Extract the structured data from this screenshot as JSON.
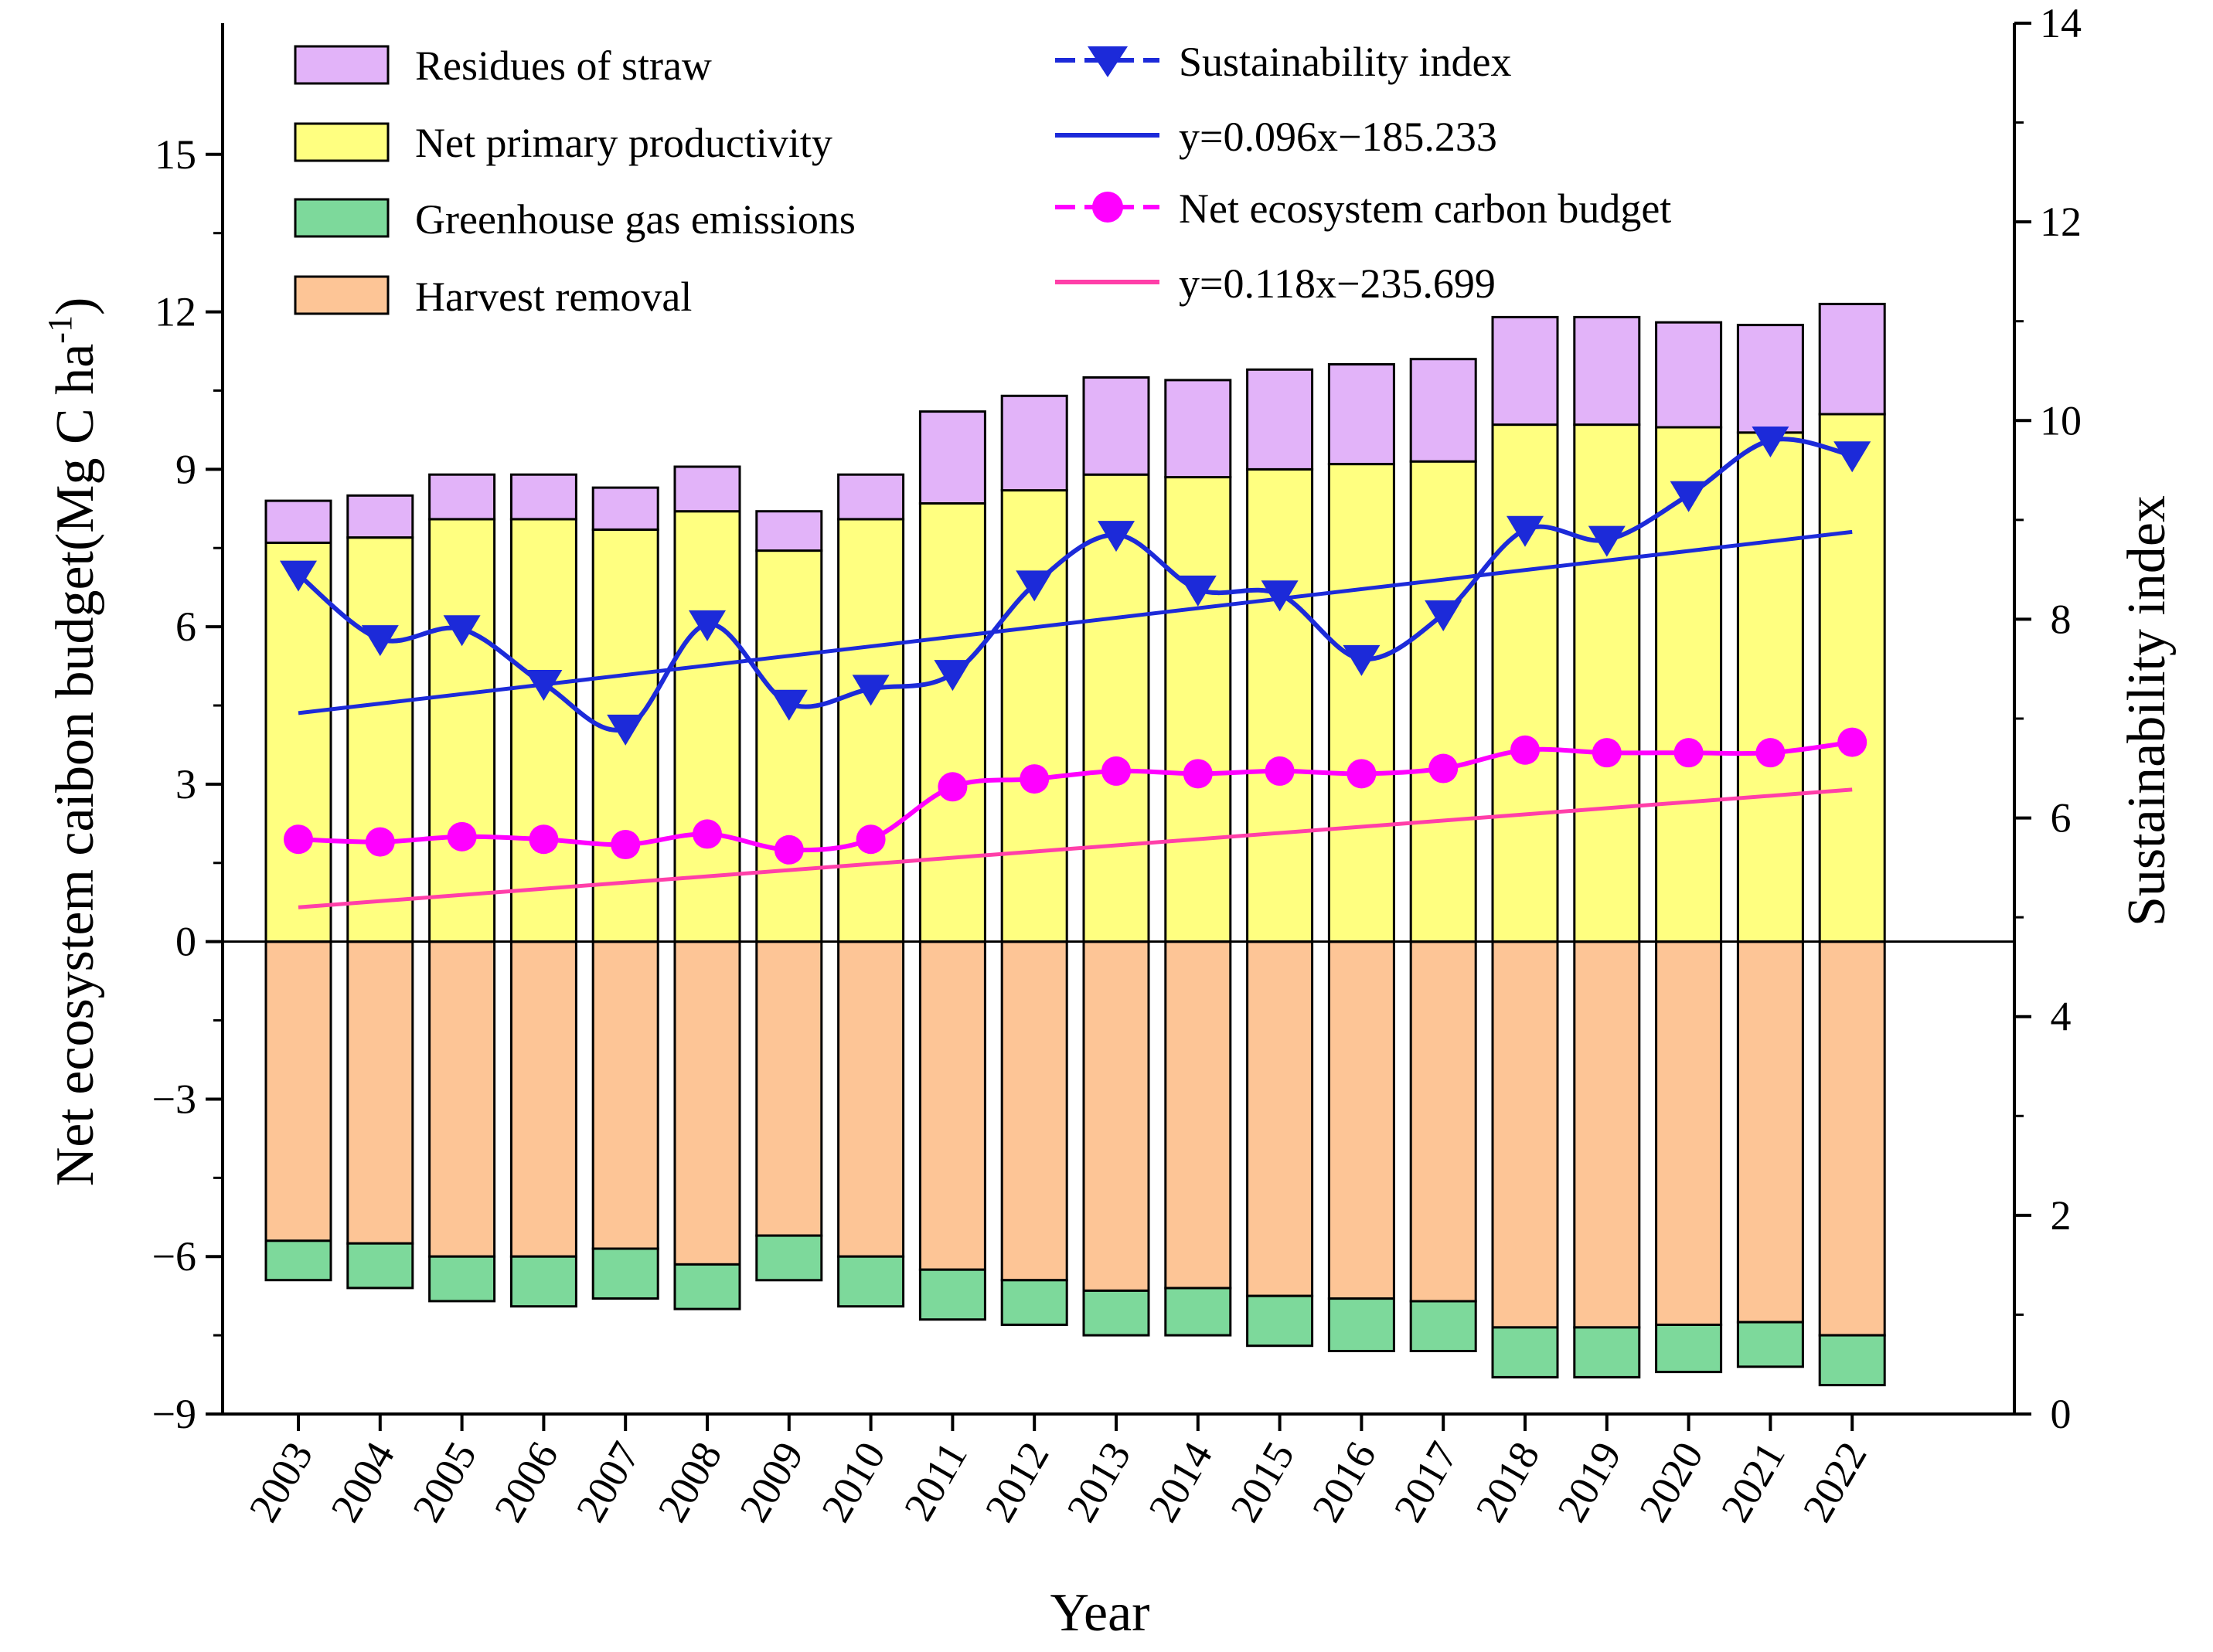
{
  "chart_data": {
    "type": "bar",
    "title": "",
    "categories": [
      "2003",
      "2004",
      "2005",
      "2006",
      "2007",
      "2008",
      "2009",
      "2010",
      "2011",
      "2012",
      "2013",
      "2014",
      "2015",
      "2016",
      "2017",
      "2018",
      "2019",
      "2020",
      "2021",
      "2022"
    ],
    "xlabel": "Year",
    "ylabel": "Net ecosystem caibon budget(Mg C ha-1)",
    "ylabel_main": "Net ecosystem caibon budget(Mg C ha",
    "ylabel_sup": "-1",
    "ylabel_close": ")",
    "y2label": "Sustainability index",
    "ylim": [
      -9,
      17.5
    ],
    "y2lim": [
      0,
      14
    ],
    "yticks": [
      -9,
      -6,
      -3,
      0,
      3,
      6,
      9,
      12,
      15
    ],
    "yticklabels": [
      "−9",
      "−6",
      "−3",
      "0",
      "3",
      "6",
      "9",
      "12",
      "15"
    ],
    "y2ticks": [
      0,
      2,
      4,
      6,
      8,
      10,
      12,
      14
    ],
    "y2ticklabels": [
      "0",
      "2",
      "4",
      "6",
      "8",
      "10",
      "12",
      "14"
    ],
    "stacks": [
      {
        "name": "Harvest removal",
        "color": "#fdc596",
        "values": [
          -5.7,
          -5.75,
          -6.0,
          -6.0,
          -5.85,
          -6.15,
          -5.6,
          -6.0,
          -6.25,
          -6.45,
          -6.65,
          -6.6,
          -6.75,
          -6.8,
          -6.85,
          -7.35,
          -7.35,
          -7.3,
          -7.25,
          -7.5
        ]
      },
      {
        "name": "Greenhouse gas emissions",
        "color": "#7dd99b",
        "values": [
          -0.75,
          -0.85,
          -0.85,
          -0.95,
          -0.95,
          -0.85,
          -0.85,
          -0.95,
          -0.95,
          -0.85,
          -0.85,
          -0.9,
          -0.95,
          -1.0,
          -0.95,
          -0.95,
          -0.95,
          -0.9,
          -0.85,
          -0.95
        ]
      },
      {
        "name": "Net primary productivity",
        "color": "#ffff80",
        "values": [
          7.6,
          7.7,
          8.05,
          8.05,
          7.85,
          8.2,
          7.45,
          8.05,
          8.35,
          8.6,
          8.9,
          8.85,
          9.0,
          9.1,
          9.15,
          9.85,
          9.85,
          9.8,
          9.7,
          10.05
        ]
      },
      {
        "name": "Residues of straw",
        "color": "#e2b3f9",
        "values": [
          0.8,
          0.8,
          0.85,
          0.85,
          0.8,
          0.85,
          0.75,
          0.85,
          1.75,
          1.8,
          1.85,
          1.85,
          1.9,
          1.9,
          1.95,
          2.05,
          2.05,
          2.0,
          2.05,
          2.1
        ]
      }
    ],
    "lines": [
      {
        "name": "Sustainability index",
        "axis": "right",
        "color": "#1c2ad9",
        "marker": "triangle-down",
        "values": [
          8.45,
          7.8,
          7.9,
          7.35,
          6.9,
          7.95,
          7.15,
          7.3,
          7.45,
          8.35,
          8.85,
          8.3,
          8.25,
          7.6,
          8.05,
          8.9,
          8.8,
          9.25,
          9.8,
          9.65
        ]
      },
      {
        "name": "Net ecosystem carbon budget",
        "axis": "left",
        "color": "#ff00ff",
        "marker": "circle",
        "values": [
          1.95,
          1.9,
          2.0,
          1.95,
          1.85,
          2.05,
          1.75,
          1.95,
          2.95,
          3.1,
          3.25,
          3.2,
          3.25,
          3.2,
          3.3,
          3.65,
          3.6,
          3.6,
          3.6,
          3.8
        ]
      }
    ],
    "trendlines": [
      {
        "label": "y=0.096x−185.233",
        "axis": "right",
        "color": "#1c2ad9",
        "slope": 0.096,
        "intercept": -185.233
      },
      {
        "label": "y=0.118x−235.699",
        "axis": "left",
        "color": "#ff3fa8",
        "slope": 0.118,
        "intercept": -235.699
      }
    ],
    "legend_location": "top",
    "grid": false
  }
}
